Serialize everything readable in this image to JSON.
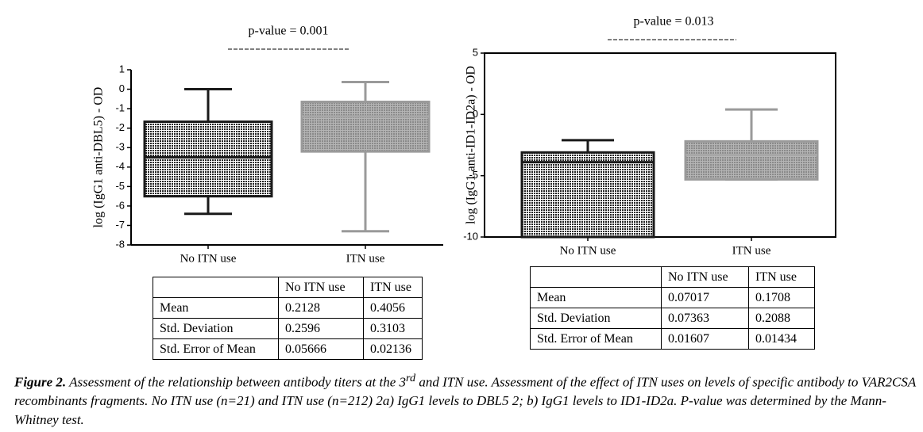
{
  "chart_data": [
    {
      "type": "box",
      "annotation": "p-value = 0.001",
      "ylabel": "log (IgG1 anti-DBL5) - OD",
      "categories": [
        "No ITN use",
        "ITN use"
      ],
      "series": [
        {
          "color": "#1a1a1a",
          "values": [
            {
              "whisker_low": -6.4,
              "q1": -5.5,
              "median": -3.5,
              "q3": -1.67,
              "whisker_high": 0
            }
          ]
        },
        {
          "color": "#9a9a9a",
          "values": [
            {
              "whisker_low": -7.3,
              "q1": -3.2,
              "median": -1.4,
              "q3": -0.65,
              "whisker_high": 0.37
            }
          ]
        }
      ],
      "ylim": [
        -8,
        1
      ],
      "yticks": [
        1,
        0,
        -1,
        -2,
        -3,
        -4,
        -5,
        -6,
        -7,
        -8
      ]
    },
    {
      "type": "box",
      "annotation": "p-value = 0.013",
      "ylabel": "log (IgG1 anti-ID1-ID2a) - OD",
      "categories": [
        "No ITN use",
        "ITN use"
      ],
      "series": [
        {
          "color": "#1a1a1a",
          "values": [
            {
              "whisker_low": -10,
              "q1": -10,
              "median": -3.9,
              "q3": -3.1,
              "whisker_high": -2.1
            }
          ]
        },
        {
          "color": "#9a9a9a",
          "values": [
            {
              "whisker_low": -5.3,
              "q1": -5.3,
              "median": -3.3,
              "q3": -2.2,
              "whisker_high": 0.4
            }
          ]
        }
      ],
      "ylim": [
        -10,
        5
      ],
      "yticks": [
        5,
        0,
        -5,
        -10
      ]
    }
  ],
  "tables": [
    {
      "columns": [
        "No ITN use",
        "ITN use"
      ],
      "rows": [
        [
          "Mean",
          "0.2128",
          "0.4056"
        ],
        [
          "Std. Deviation",
          "0.2596",
          "0.3103"
        ],
        [
          "Std. Error of Mean",
          "0.05666",
          "0.02136"
        ]
      ]
    },
    {
      "columns": [
        "No ITN use",
        "ITN use"
      ],
      "rows": [
        [
          "Mean",
          "0.07017",
          "0.1708"
        ],
        [
          "Std. Deviation",
          "0.07363",
          "0.2088"
        ],
        [
          "Std. Error of Mean",
          "0.01607",
          "0.01434"
        ]
      ]
    }
  ],
  "caption": {
    "label": "Figure 2.",
    "text_1": "Assessment of the relationship between antibody titers at the 3",
    "sup": "rd",
    "text_2": " and ITN use. Assessment of the effect of ITN uses on levels of specific antibody to VAR2CSA recombinants fragments. No ITN use (n=21) and ITN use (n=212) 2a) IgG1 levels to DBL5 2; b) IgG1 levels to ID1-ID2a. P-value was determined by the Mann-Whitney test."
  }
}
